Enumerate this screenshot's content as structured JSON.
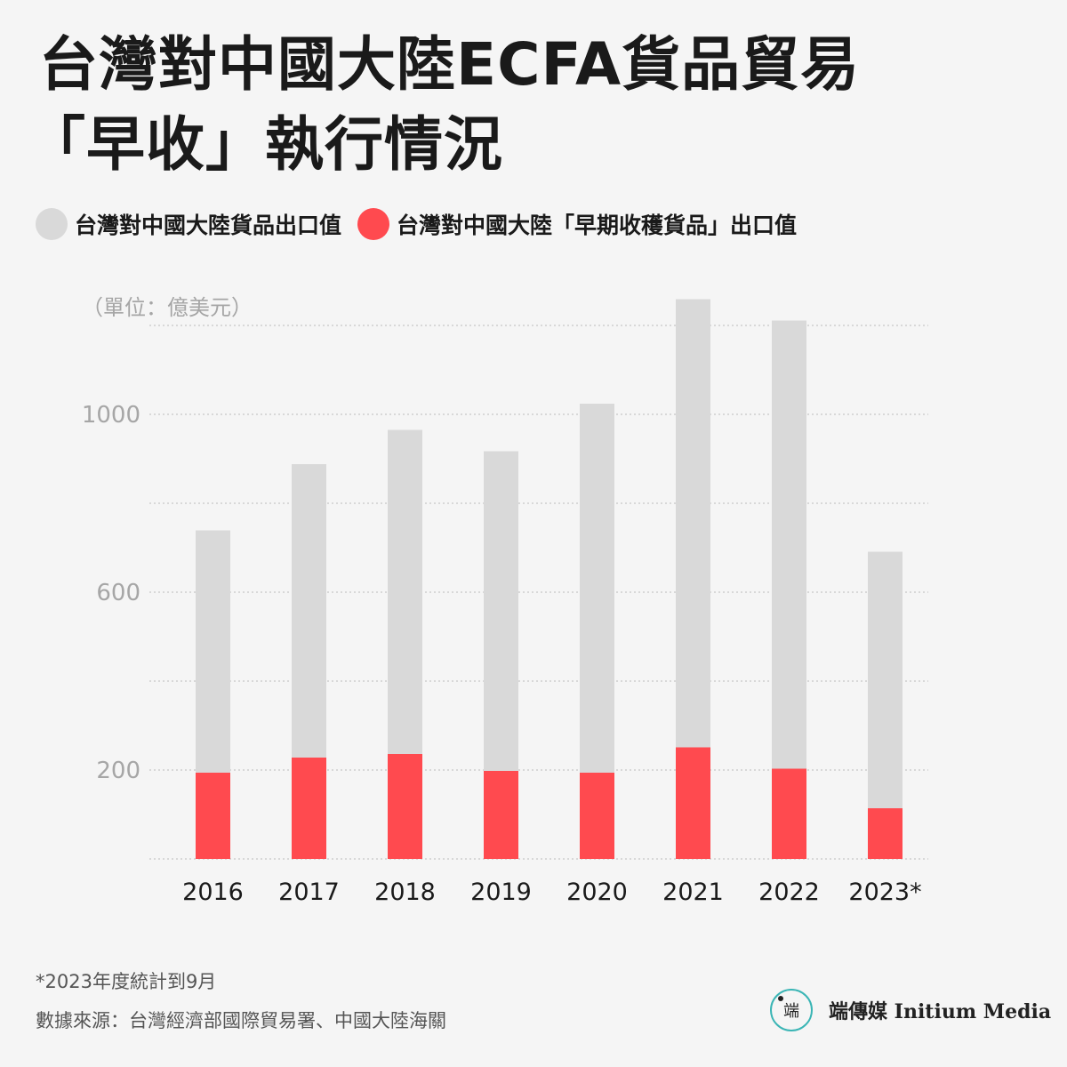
{
  "chart_data": {
    "type": "bar",
    "title_line1": "台灣對中國大陸ECFA貨品貿易",
    "title_line2": "「早收」執行情況",
    "unit_label": "（單位：億美元）",
    "categories": [
      "2016",
      "2017",
      "2018",
      "2019",
      "2020",
      "2021",
      "2022",
      "2023*"
    ],
    "series": [
      {
        "name": "台灣對中國大陸貨品出口值",
        "color": "#d9d9d9",
        "values": [
          739,
          888,
          965,
          917,
          1024,
          1259,
          1211,
          691
        ]
      },
      {
        "name": "台灣對中國大陸「早期收穫貨品」出口值",
        "color": "#ff4a4f",
        "values": [
          194,
          228,
          236,
          198,
          194,
          251,
          203,
          114
        ]
      }
    ],
    "ylim": [
      0,
      1300
    ],
    "yticks": [
      200,
      600,
      1000
    ],
    "gridlines": [
      0,
      200,
      400,
      600,
      800,
      1000,
      1200
    ],
    "grid": true,
    "legend_position": "top-left"
  },
  "footnote": "*2023年度統計到9月",
  "source": "數據來源：台灣經濟部國際貿易署、中國大陸海關",
  "brand": {
    "mark_text": "端",
    "name": "端傳媒 Initium Media",
    "ring_color": "#3ab5b5"
  }
}
